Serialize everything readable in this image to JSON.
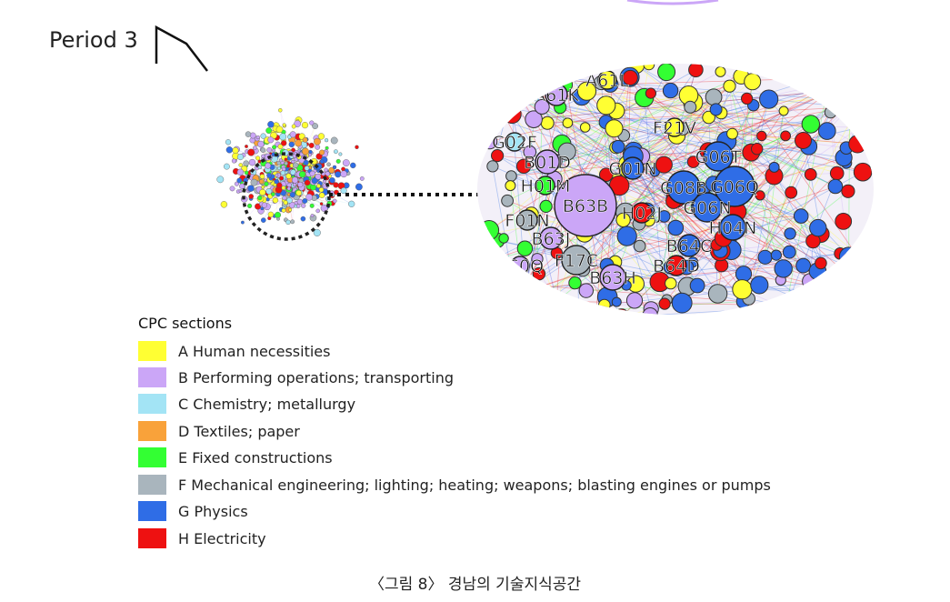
{
  "figure": {
    "period_label": "Period 3",
    "caption": "〈그림 8〉 경남의 기술지식공간"
  },
  "legend": {
    "title": "CPC sections",
    "items": [
      {
        "label": "A Human necessities",
        "color": "#ffff33"
      },
      {
        "label": "B Performing operations; transporting",
        "color": "#cba6f7"
      },
      {
        "label": "C Chemistry; metallurgy",
        "color": "#a3e4f5"
      },
      {
        "label": "D Textiles; paper",
        "color": "#f9a23a"
      },
      {
        "label": "E Fixed constructions",
        "color": "#33ff33"
      },
      {
        "label": "F Mechanical engineering; lighting; heating; weapons; blasting engines or pumps",
        "color": "#a9b5bd"
      },
      {
        "label": "G Physics",
        "color": "#2f6de6"
      },
      {
        "label": "H Electricity",
        "color": "#ee1111"
      }
    ]
  },
  "zoom_nodes": [
    {
      "code": "A61L"
    },
    {
      "code": "A61K"
    },
    {
      "code": "F21V"
    },
    {
      "code": "G02F"
    },
    {
      "code": "B01D"
    },
    {
      "code": "G01N"
    },
    {
      "code": "G06T"
    },
    {
      "code": "H01M"
    },
    {
      "code": "G08B"
    },
    {
      "code": "G06Q"
    },
    {
      "code": "B63B"
    },
    {
      "code": "H02J"
    },
    {
      "code": "G06N"
    },
    {
      "code": "F01N"
    },
    {
      "code": "H04N"
    },
    {
      "code": "B63J"
    },
    {
      "code": "B64C"
    },
    {
      "code": "F17C"
    },
    {
      "code": "B64D"
    },
    {
      "code": "B63H"
    },
    {
      "code": "B60Q"
    }
  ]
}
